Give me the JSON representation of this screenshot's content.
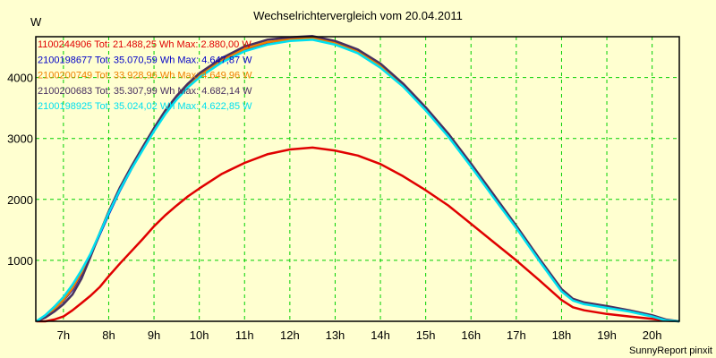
{
  "chart_data": {
    "type": "line",
    "title": "Wechselrichtervergleich vom 20.04.2011",
    "xlabel": "",
    "ylabel": "W",
    "xlim": [
      6.39,
      20.6
    ],
    "ylim": [
      0,
      4670
    ],
    "grid": true,
    "legend_position": "top-left",
    "x_ticks": [
      7,
      8,
      9,
      10,
      11,
      12,
      13,
      14,
      15,
      16,
      17,
      18,
      19,
      20
    ],
    "x_tick_labels": [
      "7h",
      "8h",
      "9h",
      "10h",
      "11h",
      "12h",
      "13h",
      "14h",
      "15h",
      "16h",
      "17h",
      "18h",
      "19h",
      "20h"
    ],
    "y_ticks": [
      1000,
      2000,
      3000,
      4000
    ],
    "y_tick_labels": [
      "1000",
      "2000",
      "3000",
      "4000"
    ],
    "x": [
      6.4,
      6.6,
      6.8,
      7.0,
      7.2,
      7.4,
      7.6,
      7.8,
      8.0,
      8.25,
      8.5,
      8.75,
      9.0,
      9.25,
      9.5,
      9.75,
      10.0,
      10.5,
      11.0,
      11.5,
      12.0,
      12.5,
      13.0,
      13.5,
      14.0,
      14.5,
      15.0,
      15.5,
      16.0,
      16.5,
      17.0,
      17.5,
      18.0,
      18.25,
      18.5,
      19.0,
      19.5,
      20.0,
      20.3,
      20.6
    ],
    "series": [
      {
        "name": "1100244906",
        "color": "#e00000",
        "legend": "1100244906 Tot: 21.488,25 Wh Max: 2.880,00 W",
        "values": [
          0,
          0,
          30,
          80,
          180,
          300,
          420,
          560,
          740,
          950,
          1150,
          1350,
          1560,
          1740,
          1900,
          2050,
          2180,
          2420,
          2600,
          2740,
          2820,
          2850,
          2800,
          2720,
          2580,
          2380,
          2150,
          1900,
          1600,
          1300,
          1000,
          680,
          350,
          230,
          180,
          120,
          80,
          40,
          10,
          0
        ]
      },
      {
        "name": "2100198677",
        "color": "#0000c8",
        "legend": "2100198677 Tot: 35.070,59 Wh Max: 4.647,87 W",
        "values": [
          0,
          80,
          200,
          340,
          520,
          780,
          1080,
          1420,
          1760,
          2150,
          2500,
          2820,
          3130,
          3420,
          3660,
          3860,
          4020,
          4270,
          4450,
          4560,
          4620,
          4640,
          4560,
          4420,
          4180,
          3870,
          3480,
          3050,
          2560,
          2050,
          1550,
          1020,
          510,
          350,
          290,
          230,
          170,
          90,
          20,
          0
        ]
      },
      {
        "name": "2100200749",
        "color": "#f08000",
        "legend": "2100200749 Tot: 33.928,96 Wh Max: 4.649,96 W",
        "values": [
          0,
          90,
          200,
          350,
          540,
          800,
          1100,
          1440,
          1800,
          2180,
          2520,
          2840,
          3150,
          3440,
          3680,
          3880,
          4040,
          4290,
          4470,
          4580,
          4630,
          4650,
          4570,
          4430,
          4200,
          3890,
          3500,
          3070,
          2580,
          2070,
          1560,
          1030,
          520,
          360,
          300,
          240,
          170,
          90,
          20,
          0
        ]
      },
      {
        "name": "2100200683",
        "color": "#483060",
        "legend": "2100200683 Tot: 35.307,99 Wh Max: 4.682,14 W",
        "values": [
          0,
          60,
          160,
          280,
          440,
          700,
          1060,
          1440,
          1800,
          2200,
          2540,
          2860,
          3170,
          3460,
          3700,
          3900,
          4070,
          4320,
          4510,
          4620,
          4660,
          4680,
          4600,
          4460,
          4230,
          3900,
          3510,
          3080,
          2590,
          2080,
          1570,
          1040,
          530,
          370,
          310,
          250,
          180,
          100,
          30,
          0
        ]
      },
      {
        "name": "2100198925",
        "color": "#00e0f0",
        "legend": "2100198925 Tot: 35.024,02 Wh Max: 4.622,85 W",
        "values": [
          0,
          100,
          240,
          400,
          600,
          840,
          1110,
          1440,
          1780,
          2160,
          2500,
          2810,
          3120,
          3400,
          3640,
          3840,
          4000,
          4250,
          4430,
          4540,
          4600,
          4620,
          4540,
          4400,
          4160,
          3850,
          3460,
          3030,
          2540,
          2030,
          1530,
          1000,
          490,
          340,
          280,
          220,
          160,
          80,
          15,
          0
        ]
      }
    ]
  },
  "footer": {
    "credit": "SunnyReport pinxit"
  }
}
